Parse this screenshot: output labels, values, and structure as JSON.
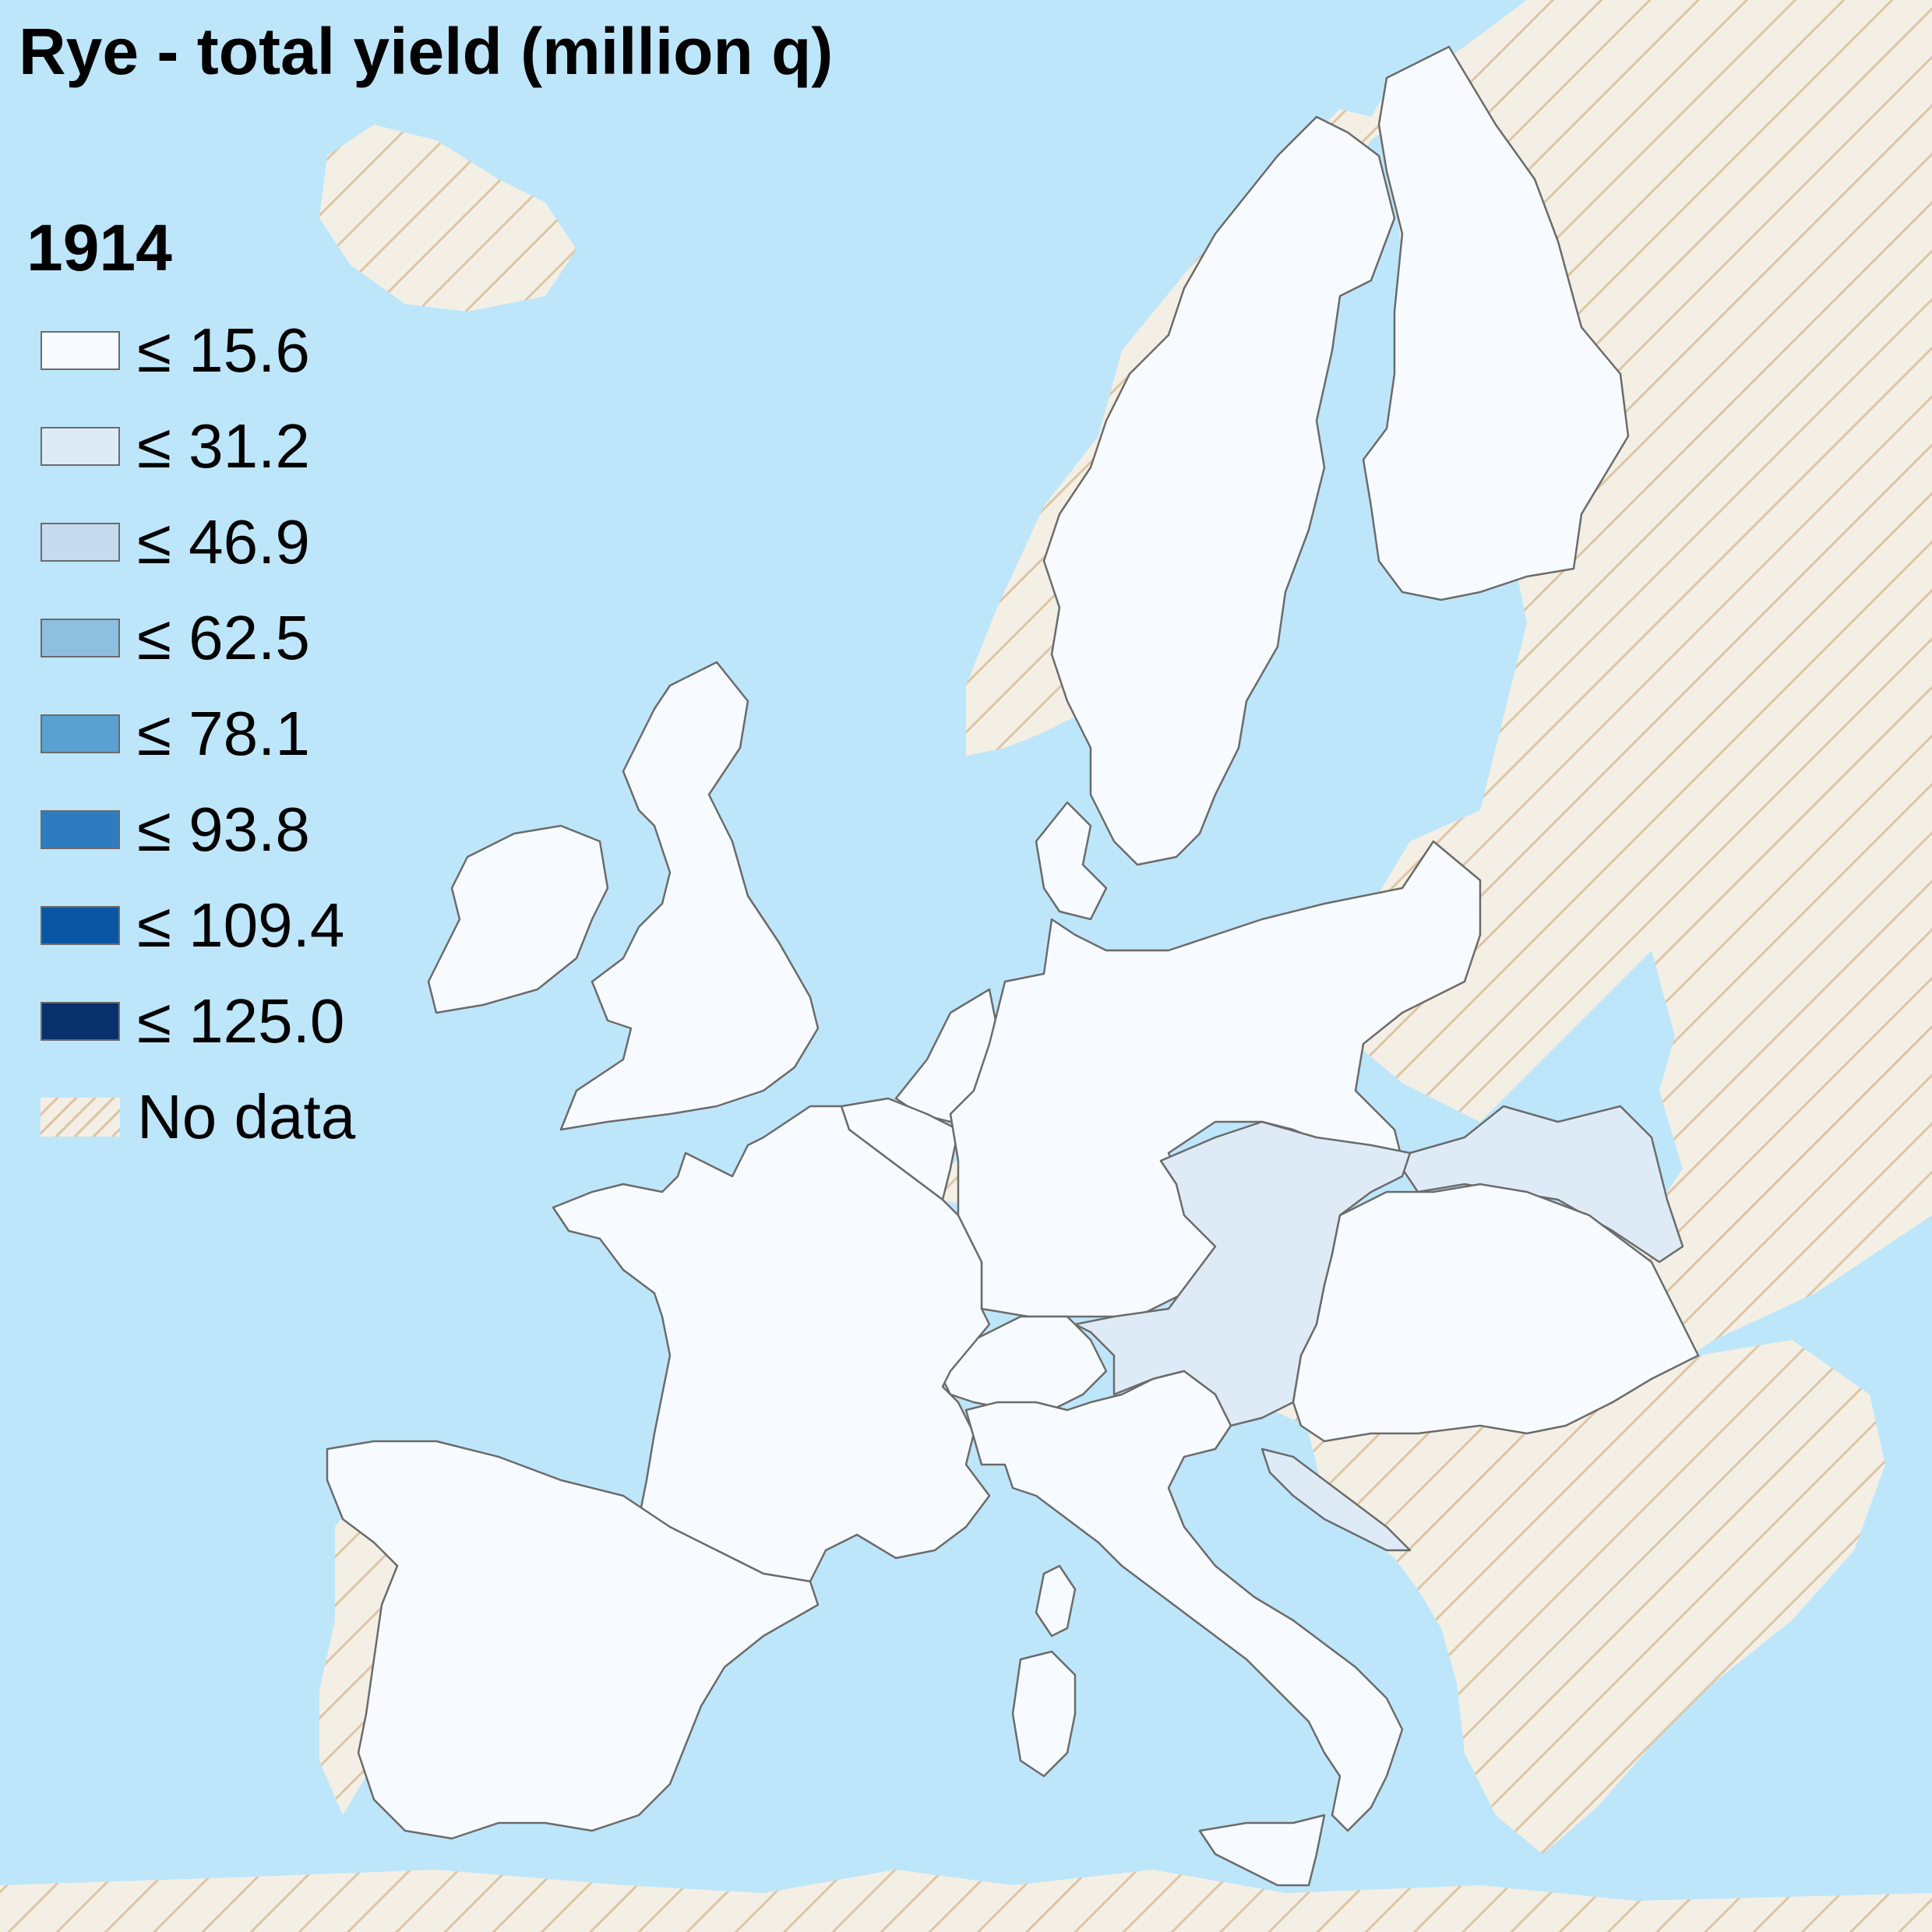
{
  "title": "Rye - total yield (million q)",
  "legend": {
    "year": "1914",
    "classes": [
      {
        "label": "≤ 15.6",
        "color": "#f7fbff"
      },
      {
        "label": "≤ 31.2",
        "color": "#deebf7"
      },
      {
        "label": "≤ 46.9",
        "color": "#c6dbef"
      },
      {
        "label": "≤ 62.5",
        "color": "#8fbfdf"
      },
      {
        "label": "≤ 78.1",
        "color": "#5aa0d0"
      },
      {
        "label": "≤ 93.8",
        "color": "#2e7cbf"
      },
      {
        "label": "≤ 109.4",
        "color": "#0a56a4"
      },
      {
        "label": "≤ 125.0",
        "color": "#08306b"
      }
    ],
    "no_data_label": "No data"
  },
  "colors": {
    "sea": "#bee6fb",
    "no_data_fill": "#f4efe4",
    "no_data_hatch": "#dcc6a6",
    "border": "#6b6b6b"
  },
  "regions": [
    {
      "name": "United Kingdom",
      "class": 0
    },
    {
      "name": "Ireland",
      "class": 0
    },
    {
      "name": "France",
      "class": 0
    },
    {
      "name": "Spain",
      "class": 0
    },
    {
      "name": "Italy",
      "class": 0
    },
    {
      "name": "Switzerland",
      "class": 0
    },
    {
      "name": "Belgium",
      "class": 0
    },
    {
      "name": "Netherlands",
      "class": 0
    },
    {
      "name": "Germany",
      "class": 0
    },
    {
      "name": "Denmark",
      "class": 0
    },
    {
      "name": "Sweden",
      "class": 0
    },
    {
      "name": "Finland",
      "class": 0
    },
    {
      "name": "Hungary",
      "class": 0
    },
    {
      "name": "Austria",
      "class": 1
    },
    {
      "name": "Galicia",
      "class": 1
    },
    {
      "name": "Dalmatia",
      "class": 1
    },
    {
      "name": "Portugal",
      "class": null
    },
    {
      "name": "Norway",
      "class": null
    },
    {
      "name": "Russia",
      "class": null
    },
    {
      "name": "Balkans",
      "class": null
    },
    {
      "name": "North Africa",
      "class": null
    },
    {
      "name": "Luxembourg",
      "class": null
    }
  ]
}
